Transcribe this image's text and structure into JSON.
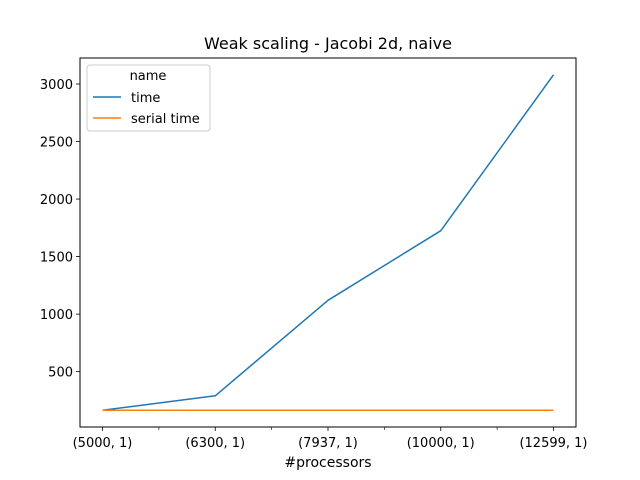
{
  "chart_data": {
    "type": "line",
    "title": "Weak scaling - Jacobi 2d, naive",
    "xlabel": "#processors",
    "ylabel": "",
    "categories": [
      "(5000, 1)",
      "(6300, 1)",
      "(7937, 1)",
      "(10000, 1)",
      "(12599, 1)"
    ],
    "series": [
      {
        "name": "time",
        "color": "#1f77b4",
        "values": [
          165,
          290,
          1120,
          1725,
          3080
        ]
      },
      {
        "name": "serial time",
        "color": "#ff7f0e",
        "values": [
          165,
          165,
          165,
          165,
          165
        ]
      }
    ],
    "yticks": [
      500,
      1000,
      1500,
      2000,
      2500,
      3000
    ],
    "ylim": [
      19,
      3226
    ],
    "legend": {
      "title": "name",
      "placement": "top-left"
    },
    "grid": false
  }
}
